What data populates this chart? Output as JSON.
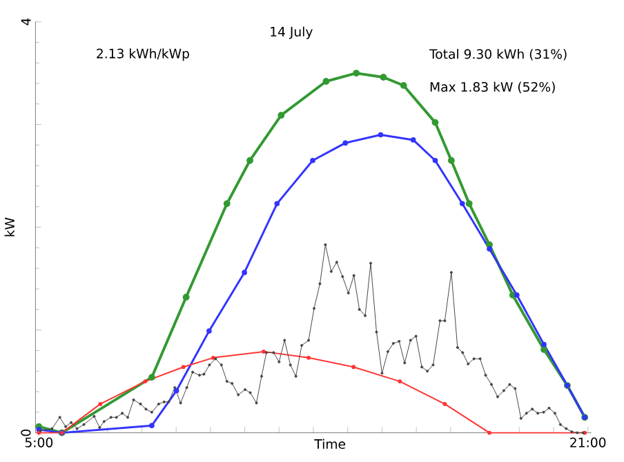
{
  "chart_data": {
    "type": "line",
    "title": "14 July",
    "xlabel": "Time",
    "ylabel": "kW",
    "annotations": [
      "2.13 kWh/kWp",
      "Total 9.30 kWh (31%)",
      "Max 1.83 kW (52%)"
    ],
    "xlim": [
      4.9,
      21.1
    ],
    "ylim": [
      0,
      4
    ],
    "xticks": [
      {
        "value": 5,
        "label": "5:00"
      },
      {
        "value": 6,
        "label": null
      },
      {
        "value": 7,
        "label": null
      },
      {
        "value": 8,
        "label": null
      },
      {
        "value": 9,
        "label": null
      },
      {
        "value": 10,
        "label": null
      },
      {
        "value": 11,
        "label": null
      },
      {
        "value": 12,
        "label": null
      },
      {
        "value": 13,
        "label": null
      },
      {
        "value": 14,
        "label": null
      },
      {
        "value": 15,
        "label": null
      },
      {
        "value": 16,
        "label": null
      },
      {
        "value": 17,
        "label": null
      },
      {
        "value": 18,
        "label": null
      },
      {
        "value": 19,
        "label": null
      },
      {
        "value": 20,
        "label": null
      },
      {
        "value": 21,
        "label": "21:00"
      }
    ],
    "yticks": [
      0,
      {
        "value": 1,
        "label": null
      },
      {
        "value": 2,
        "label": null
      },
      {
        "value": 3,
        "label": null
      },
      4
    ],
    "marker": "circle",
    "grid": false,
    "series": [
      {
        "color": "#339933",
        "x": [
          5.0,
          5.67,
          8.29,
          9.29,
          10.48,
          11.15,
          12.06,
          13.37,
          14.25,
          15.04,
          15.63,
          16.55,
          17.02,
          17.54,
          18.13,
          18.81,
          19.72,
          20.4,
          20.91
        ],
        "values": [
          0.06,
          0.0,
          0.54,
          1.32,
          2.23,
          2.65,
          3.09,
          3.42,
          3.5,
          3.46,
          3.38,
          3.02,
          2.65,
          2.23,
          1.83,
          1.34,
          0.81,
          0.46,
          0.15
        ]
      },
      {
        "color": "#3333ff",
        "x": [
          5.0,
          5.67,
          8.29,
          9.01,
          9.96,
          10.99,
          11.94,
          12.98,
          13.93,
          14.96,
          15.91,
          16.55,
          17.34,
          18.13,
          18.93,
          19.72,
          20.4,
          20.91
        ],
        "values": [
          0.03,
          0.0,
          0.07,
          0.41,
          0.99,
          1.56,
          2.23,
          2.65,
          2.82,
          2.9,
          2.85,
          2.65,
          2.23,
          1.79,
          1.34,
          0.86,
          0.46,
          0.15
        ]
      },
      {
        "color": "#ff3333",
        "x": [
          5.0,
          5.67,
          6.79,
          8.1,
          9.21,
          10.08,
          11.55,
          12.86,
          14.17,
          15.52,
          16.83,
          18.13,
          20.91
        ],
        "values": [
          0.0,
          0.0,
          0.28,
          0.5,
          0.64,
          0.73,
          0.79,
          0.73,
          0.64,
          0.5,
          0.28,
          0.0,
          0.0
        ]
      },
      {
        "color": "#444444",
        "x": [
          5.05,
          5.38,
          5.61,
          5.78,
          5.94,
          6.11,
          6.31,
          6.61,
          6.77,
          6.9,
          7.1,
          7.26,
          7.43,
          7.59,
          7.76,
          7.96,
          8.12,
          8.29,
          8.49,
          8.65,
          8.78,
          8.96,
          9.13,
          9.31,
          9.48,
          9.68,
          9.81,
          9.97,
          10.15,
          10.32,
          10.48,
          10.63,
          10.81,
          11.01,
          11.16,
          11.34,
          11.49,
          11.63,
          11.84,
          12.0,
          12.16,
          12.33,
          12.49,
          12.66,
          12.86,
          13.02,
          13.19,
          13.35,
          13.52,
          13.68,
          13.85,
          14.02,
          14.18,
          14.34,
          14.51,
          14.67,
          14.84,
          15.0,
          15.17,
          15.33,
          15.5,
          15.66,
          15.83,
          15.99,
          16.16,
          16.32,
          16.49,
          16.69,
          16.83,
          17.02,
          17.2,
          17.35,
          17.51,
          17.68,
          17.86,
          18.02,
          18.19,
          18.37,
          18.55,
          18.72,
          18.88,
          19.05,
          19.21,
          19.38,
          19.54,
          19.71,
          19.87,
          20.04,
          20.2,
          20.37,
          20.53,
          20.69,
          20.86
        ],
        "values": [
          0.02,
          0.04,
          0.15,
          0.06,
          0.1,
          0.04,
          0.08,
          0.16,
          0.05,
          0.11,
          0.15,
          0.15,
          0.19,
          0.15,
          0.32,
          0.28,
          0.23,
          0.2,
          0.28,
          0.3,
          0.3,
          0.44,
          0.29,
          0.44,
          0.59,
          0.56,
          0.57,
          0.66,
          0.72,
          0.66,
          0.5,
          0.48,
          0.37,
          0.42,
          0.39,
          0.29,
          0.55,
          0.78,
          0.78,
          0.69,
          0.9,
          0.66,
          0.55,
          0.85,
          0.9,
          1.21,
          1.45,
          1.83,
          1.57,
          1.66,
          1.52,
          1.36,
          1.53,
          1.2,
          1.14,
          1.65,
          0.98,
          0.58,
          0.79,
          0.87,
          0.89,
          0.68,
          0.9,
          0.94,
          0.64,
          0.6,
          0.66,
          1.09,
          1.09,
          1.56,
          0.83,
          0.78,
          0.67,
          0.72,
          0.72,
          0.56,
          0.47,
          0.35,
          0.41,
          0.47,
          0.43,
          0.14,
          0.19,
          0.23,
          0.19,
          0.2,
          0.24,
          0.19,
          0.08,
          0.04,
          0.01,
          0.0,
          0.0
        ]
      }
    ]
  }
}
